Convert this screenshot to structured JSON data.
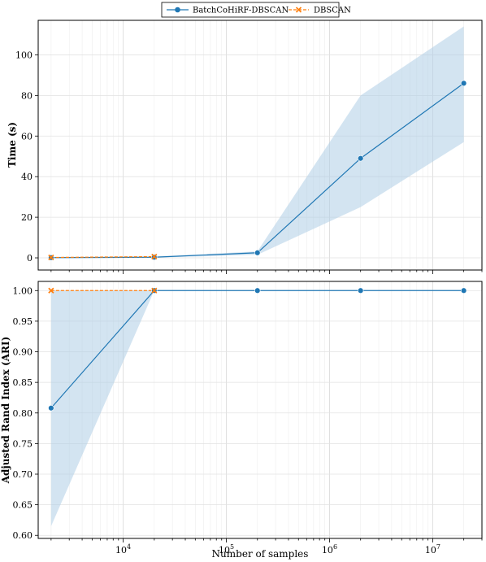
{
  "colors": {
    "series_a": "#1f77b4",
    "series_a_band": "#aecde6",
    "series_b": "#ff7f0e"
  },
  "legend": {
    "items": [
      {
        "label": "BatchCoHiRF-DBSCAN",
        "marker": "circle",
        "line": "solid",
        "color": "#1f77b4"
      },
      {
        "label": "DBSCAN",
        "marker": "x",
        "line": "dashed",
        "color": "#ff7f0e"
      }
    ],
    "placement": "top-center, above plots"
  },
  "chart_data": [
    {
      "type": "line",
      "xscale": "log",
      "ylabel": "Time (s)",
      "xlabel": "",
      "xlim": [
        1500,
        30000000
      ],
      "ylim": [
        -6,
        117
      ],
      "yticks": [
        0,
        20,
        40,
        60,
        80,
        100
      ],
      "xticks_labeled": [
        10000,
        100000,
        1000000,
        10000000
      ],
      "xtick_labels": [
        "10^4",
        "10^5",
        "10^6",
        "10^7"
      ],
      "grid": "on (major and minor, light)",
      "series": [
        {
          "name": "BatchCoHiRF-DBSCAN",
          "x": [
            2000,
            20000,
            200000,
            2000000,
            20000000
          ],
          "y": [
            0.1,
            0.3,
            2.5,
            49,
            86
          ],
          "band_low": [
            0.0,
            0.1,
            1.5,
            25,
            57
          ],
          "band_high": [
            0.2,
            0.6,
            3.2,
            80,
            114
          ]
        },
        {
          "name": "DBSCAN",
          "x": [
            2000,
            20000
          ],
          "y": [
            0.2,
            0.6
          ]
        }
      ]
    },
    {
      "type": "line",
      "xscale": "log",
      "ylabel": "Adjusted Rand Index (ARI)",
      "xlabel": "Number of samples",
      "xlim": [
        1500,
        30000000
      ],
      "ylim": [
        0.595,
        1.015
      ],
      "yticks": [
        0.6,
        0.65,
        0.7,
        0.75,
        0.8,
        0.85,
        0.9,
        0.95,
        1.0
      ],
      "ytick_labels": [
        "0.60",
        "0.65",
        "0.70",
        "0.75",
        "0.80",
        "0.85",
        "0.90",
        "0.95",
        "1.00"
      ],
      "xticks_labeled": [
        10000,
        100000,
        1000000,
        10000000
      ],
      "xtick_labels": [
        "10^4",
        "10^5",
        "10^6",
        "10^7"
      ],
      "grid": "on (major and minor, light)",
      "series": [
        {
          "name": "BatchCoHiRF-DBSCAN",
          "x": [
            2000,
            20000,
            200000,
            2000000,
            20000000
          ],
          "y": [
            0.808,
            1.0,
            1.0,
            1.0,
            1.0
          ],
          "band_low": [
            0.615,
            1.0,
            1.0,
            1.0,
            1.0
          ],
          "band_high": [
            1.0,
            1.0,
            1.0,
            1.0,
            1.0
          ]
        },
        {
          "name": "DBSCAN",
          "x": [
            2000,
            20000
          ],
          "y": [
            1.0,
            1.0
          ]
        }
      ]
    }
  ]
}
